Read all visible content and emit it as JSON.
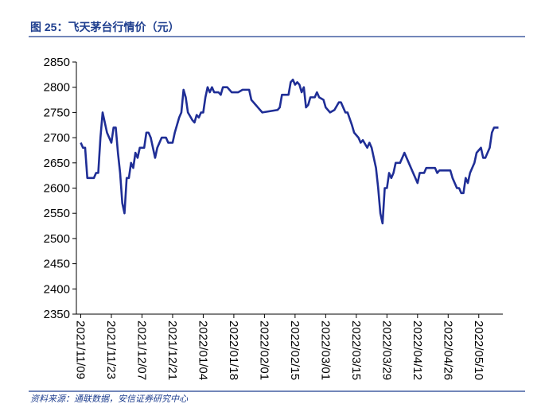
{
  "chart_data": {
    "type": "line",
    "title": "图 25：飞天茅台行情价（元）",
    "source": "资料来源：通联数据，安信证券研究中心",
    "color": "#1f2e96",
    "x": [
      "2021/11/09",
      "2021/11/10",
      "2021/11/11",
      "2021/11/12",
      "2021/11/15",
      "2021/11/16",
      "2021/11/17",
      "2021/11/18",
      "2021/11/19",
      "2021/11/21",
      "2021/11/22",
      "2021/11/23",
      "2021/11/24",
      "2021/11/25",
      "2021/11/26",
      "2021/11/27",
      "2021/11/28",
      "2021/11/29",
      "2021/11/30",
      "2021/12/01",
      "2021/12/02",
      "2021/12/03",
      "2021/12/04",
      "2021/12/05",
      "2021/12/06",
      "2021/12/08",
      "2021/12/09",
      "2021/12/10",
      "2021/12/11",
      "2021/12/13",
      "2021/12/14",
      "2021/12/15",
      "2021/12/16",
      "2021/12/18",
      "2021/12/19",
      "2021/12/21",
      "2021/12/22",
      "2021/12/24",
      "2021/12/25",
      "2021/12/26",
      "2021/12/27",
      "2021/12/28",
      "2021/12/30",
      "2021/12/31",
      "2022/01/01",
      "2022/01/02",
      "2022/01/03",
      "2022/01/04",
      "2022/01/05",
      "2022/01/06",
      "2022/01/07",
      "2022/01/08",
      "2022/01/09",
      "2022/01/11",
      "2022/01/12",
      "2022/01/13",
      "2022/01/15",
      "2022/01/17",
      "2022/01/20",
      "2022/01/22",
      "2022/01/25",
      "2022/01/26",
      "2022/01/28",
      "2022/01/29",
      "2022/01/31",
      "2022/02/07",
      "2022/02/08",
      "2022/02/09",
      "2022/02/12",
      "2022/02/13",
      "2022/02/14",
      "2022/02/15",
      "2022/02/16",
      "2022/02/17",
      "2022/02/18",
      "2022/02/19",
      "2022/02/20",
      "2022/02/21",
      "2022/02/22",
      "2022/02/24",
      "2022/02/25",
      "2022/02/26",
      "2022/02/28",
      "2022/03/01",
      "2022/03/03",
      "2022/03/05",
      "2022/03/07",
      "2022/03/08",
      "2022/03/09",
      "2022/03/10",
      "2022/03/11",
      "2022/03/13",
      "2022/03/14",
      "2022/03/16",
      "2022/03/17",
      "2022/03/18",
      "2022/03/20",
      "2022/03/21",
      "2022/03/22",
      "2022/03/24",
      "2022/03/25",
      "2022/03/26",
      "2022/03/27",
      "2022/03/28",
      "2022/03/29",
      "2022/03/30",
      "2022/03/31",
      "2022/04/01",
      "2022/04/02",
      "2022/04/04",
      "2022/04/05",
      "2022/04/06",
      "2022/04/08",
      "2022/04/10",
      "2022/04/12",
      "2022/04/13",
      "2022/04/15",
      "2022/04/16",
      "2022/04/20",
      "2022/04/21",
      "2022/04/22",
      "2022/04/27",
      "2022/04/28",
      "2022/04/30",
      "2022/05/01",
      "2022/05/02",
      "2022/05/03",
      "2022/05/04",
      "2022/05/05",
      "2022/05/06",
      "2022/05/07",
      "2022/05/08",
      "2022/05/09",
      "2022/05/11",
      "2022/05/12",
      "2022/05/13",
      "2022/05/15",
      "2022/05/16",
      "2022/05/17",
      "2022/05/19"
    ],
    "values": [
      2690,
      2680,
      2680,
      2620,
      2620,
      2630,
      2630,
      2700,
      2750,
      2710,
      2700,
      2690,
      2720,
      2720,
      2670,
      2630,
      2570,
      2550,
      2620,
      2620,
      2650,
      2640,
      2670,
      2660,
      2680,
      2680,
      2710,
      2710,
      2700,
      2660,
      2680,
      2690,
      2700,
      2700,
      2690,
      2690,
      2710,
      2740,
      2750,
      2795,
      2780,
      2750,
      2735,
      2730,
      2745,
      2740,
      2750,
      2750,
      2780,
      2800,
      2790,
      2800,
      2790,
      2790,
      2785,
      2800,
      2800,
      2790,
      2790,
      2795,
      2795,
      2775,
      2765,
      2760,
      2750,
      2755,
      2760,
      2785,
      2785,
      2810,
      2815,
      2805,
      2810,
      2805,
      2790,
      2800,
      2760,
      2765,
      2780,
      2780,
      2790,
      2780,
      2775,
      2760,
      2750,
      2755,
      2770,
      2770,
      2760,
      2750,
      2750,
      2725,
      2710,
      2700,
      2690,
      2695,
      2680,
      2690,
      2680,
      2640,
      2600,
      2550,
      2530,
      2600,
      2600,
      2630,
      2620,
      2630,
      2650,
      2650,
      2660,
      2670,
      2650,
      2630,
      2610,
      2630,
      2630,
      2640,
      2640,
      2630,
      2635,
      2635,
      2620,
      2600,
      2600,
      2590,
      2590,
      2620,
      2610,
      2630,
      2640,
      2650,
      2670,
      2680,
      2660,
      2660,
      2680,
      2710,
      2720,
      2720
    ],
    "xlim": [
      "2021/11/07",
      "2022/05/21"
    ],
    "xticks": [
      "2021/11/09",
      "2021/11/23",
      "2021/12/07",
      "2021/12/21",
      "2022/01/04",
      "2022/01/18",
      "2022/02/01",
      "2022/02/15",
      "2022/03/01",
      "2022/03/15",
      "2022/03/29",
      "2022/04/12",
      "2022/04/26",
      "2022/05/10"
    ],
    "ylim": [
      2350,
      2850
    ],
    "yticks": [
      2350,
      2400,
      2450,
      2500,
      2550,
      2600,
      2650,
      2700,
      2750,
      2800,
      2850
    ],
    "grid": false
  }
}
